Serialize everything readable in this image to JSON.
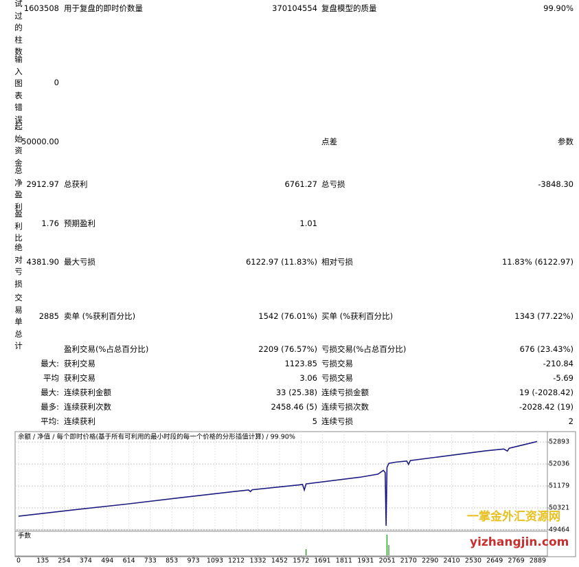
{
  "report": {
    "rows": [
      {
        "heading": "试过的柱数",
        "value": "1603508",
        "label1": "用于复盘的即时价数量",
        "value1": "370104554",
        "label2": "复盘模型的质量",
        "value2": "99.90%"
      },
      {
        "heading": "输入图表错误",
        "value": "0"
      },
      {
        "heading": "起始资金",
        "value": "50000.00",
        "label2": "点差",
        "value2": "参数"
      },
      {
        "heading": "总净盈利",
        "value": "2912.97",
        "label1": "总获利",
        "value1": "6761.27",
        "label2": "总亏损",
        "value2": "-3848.30"
      },
      {
        "heading": "盈利比",
        "value": "1.76",
        "label1": "预期盈利",
        "value1": "1.01"
      },
      {
        "heading": "绝对亏损",
        "value": "4381.90",
        "label1": "最大亏损",
        "value1": "6122.97 (11.83%)",
        "label2": "相对亏损",
        "value2": "11.83% (6122.97)"
      },
      {
        "heading": "交易单总计",
        "value": "2885",
        "label1": "卖单 (%获利百分比)",
        "value1": "1542 (76.01%)",
        "label2": "买单 (%获利百分比)",
        "value2": "1343 (77.22%)"
      },
      {
        "label1": "盈利交易(%占总百分比)",
        "value1": "2209 (76.57%)",
        "label2": "亏损交易(%占总百分比)",
        "value2": "676 (23.43%)"
      },
      {
        "value": "最大:",
        "label1": "获利交易",
        "value1": "1123.85",
        "label2": "亏损交易",
        "value2": "-210.84"
      },
      {
        "value": "平均",
        "label1": "获利交易",
        "value1": "3.06",
        "label2": "亏损交易",
        "value2": "-5.69"
      },
      {
        "value": "最大:",
        "label1": "连续获利金额",
        "value1": "33 (25.38)",
        "label2": "连续亏损金额",
        "value2": "19 (-2028.42)"
      },
      {
        "value": "最多:",
        "label1": "连续获利次数",
        "value1": "2458.46 (5)",
        "label2": "连续亏损次数",
        "value2": "-2028.42 (19)"
      },
      {
        "value": "平均:",
        "label1": "连续获利",
        "value1": "5",
        "label2": "连续亏损",
        "value2": "2"
      }
    ]
  },
  "chart_data": {
    "type": "line",
    "legend": "余额 / 净值 / 每个即时价格(基于所有可利用的最小时段的每一个价格的分形插值计算) / 99.90%",
    "x": [
      0,
      300,
      600,
      900,
      1200,
      1280,
      1290,
      1300,
      1560,
      1580,
      1590,
      1600,
      1900,
      2000,
      2030,
      2040,
      2045,
      2050,
      2060,
      2100,
      2160,
      2170,
      2180,
      2400,
      2600,
      2700,
      2720,
      2730,
      2885
    ],
    "series": [
      {
        "name": "余额",
        "color": "#1a1a80",
        "values": [
          50000,
          50240,
          50470,
          50720,
          50960,
          51020,
          50960,
          51030,
          51220,
          51240,
          51020,
          51260,
          51520,
          51640,
          51790,
          51700,
          49630,
          51900,
          52060,
          52110,
          52150,
          52020,
          52170,
          52370,
          52550,
          52620,
          52540,
          52650,
          52913
        ]
      }
    ],
    "xlim": [
      0,
      2935
    ],
    "ylim": [
      49464,
      53300
    ],
    "xticks": [
      0,
      135,
      254,
      374,
      494,
      614,
      733,
      853,
      973,
      1093,
      1212,
      1332,
      1452,
      1572,
      1691,
      1811,
      1931,
      2051,
      2170,
      2290,
      2410,
      2530,
      2649,
      2769,
      2889
    ],
    "yticks": [
      49464,
      50321,
      51179,
      52036,
      52893
    ],
    "grid": true,
    "lots": {
      "name": "手数",
      "color": "#00a000",
      "x": [
        1600,
        2050,
        2060
      ],
      "values": [
        0.3,
        1,
        0.5
      ],
      "ylim": [
        0,
        1.1
      ]
    }
  },
  "watermark": {
    "title": "一掌金外汇资源网",
    "url": "yizhangjin.com"
  }
}
